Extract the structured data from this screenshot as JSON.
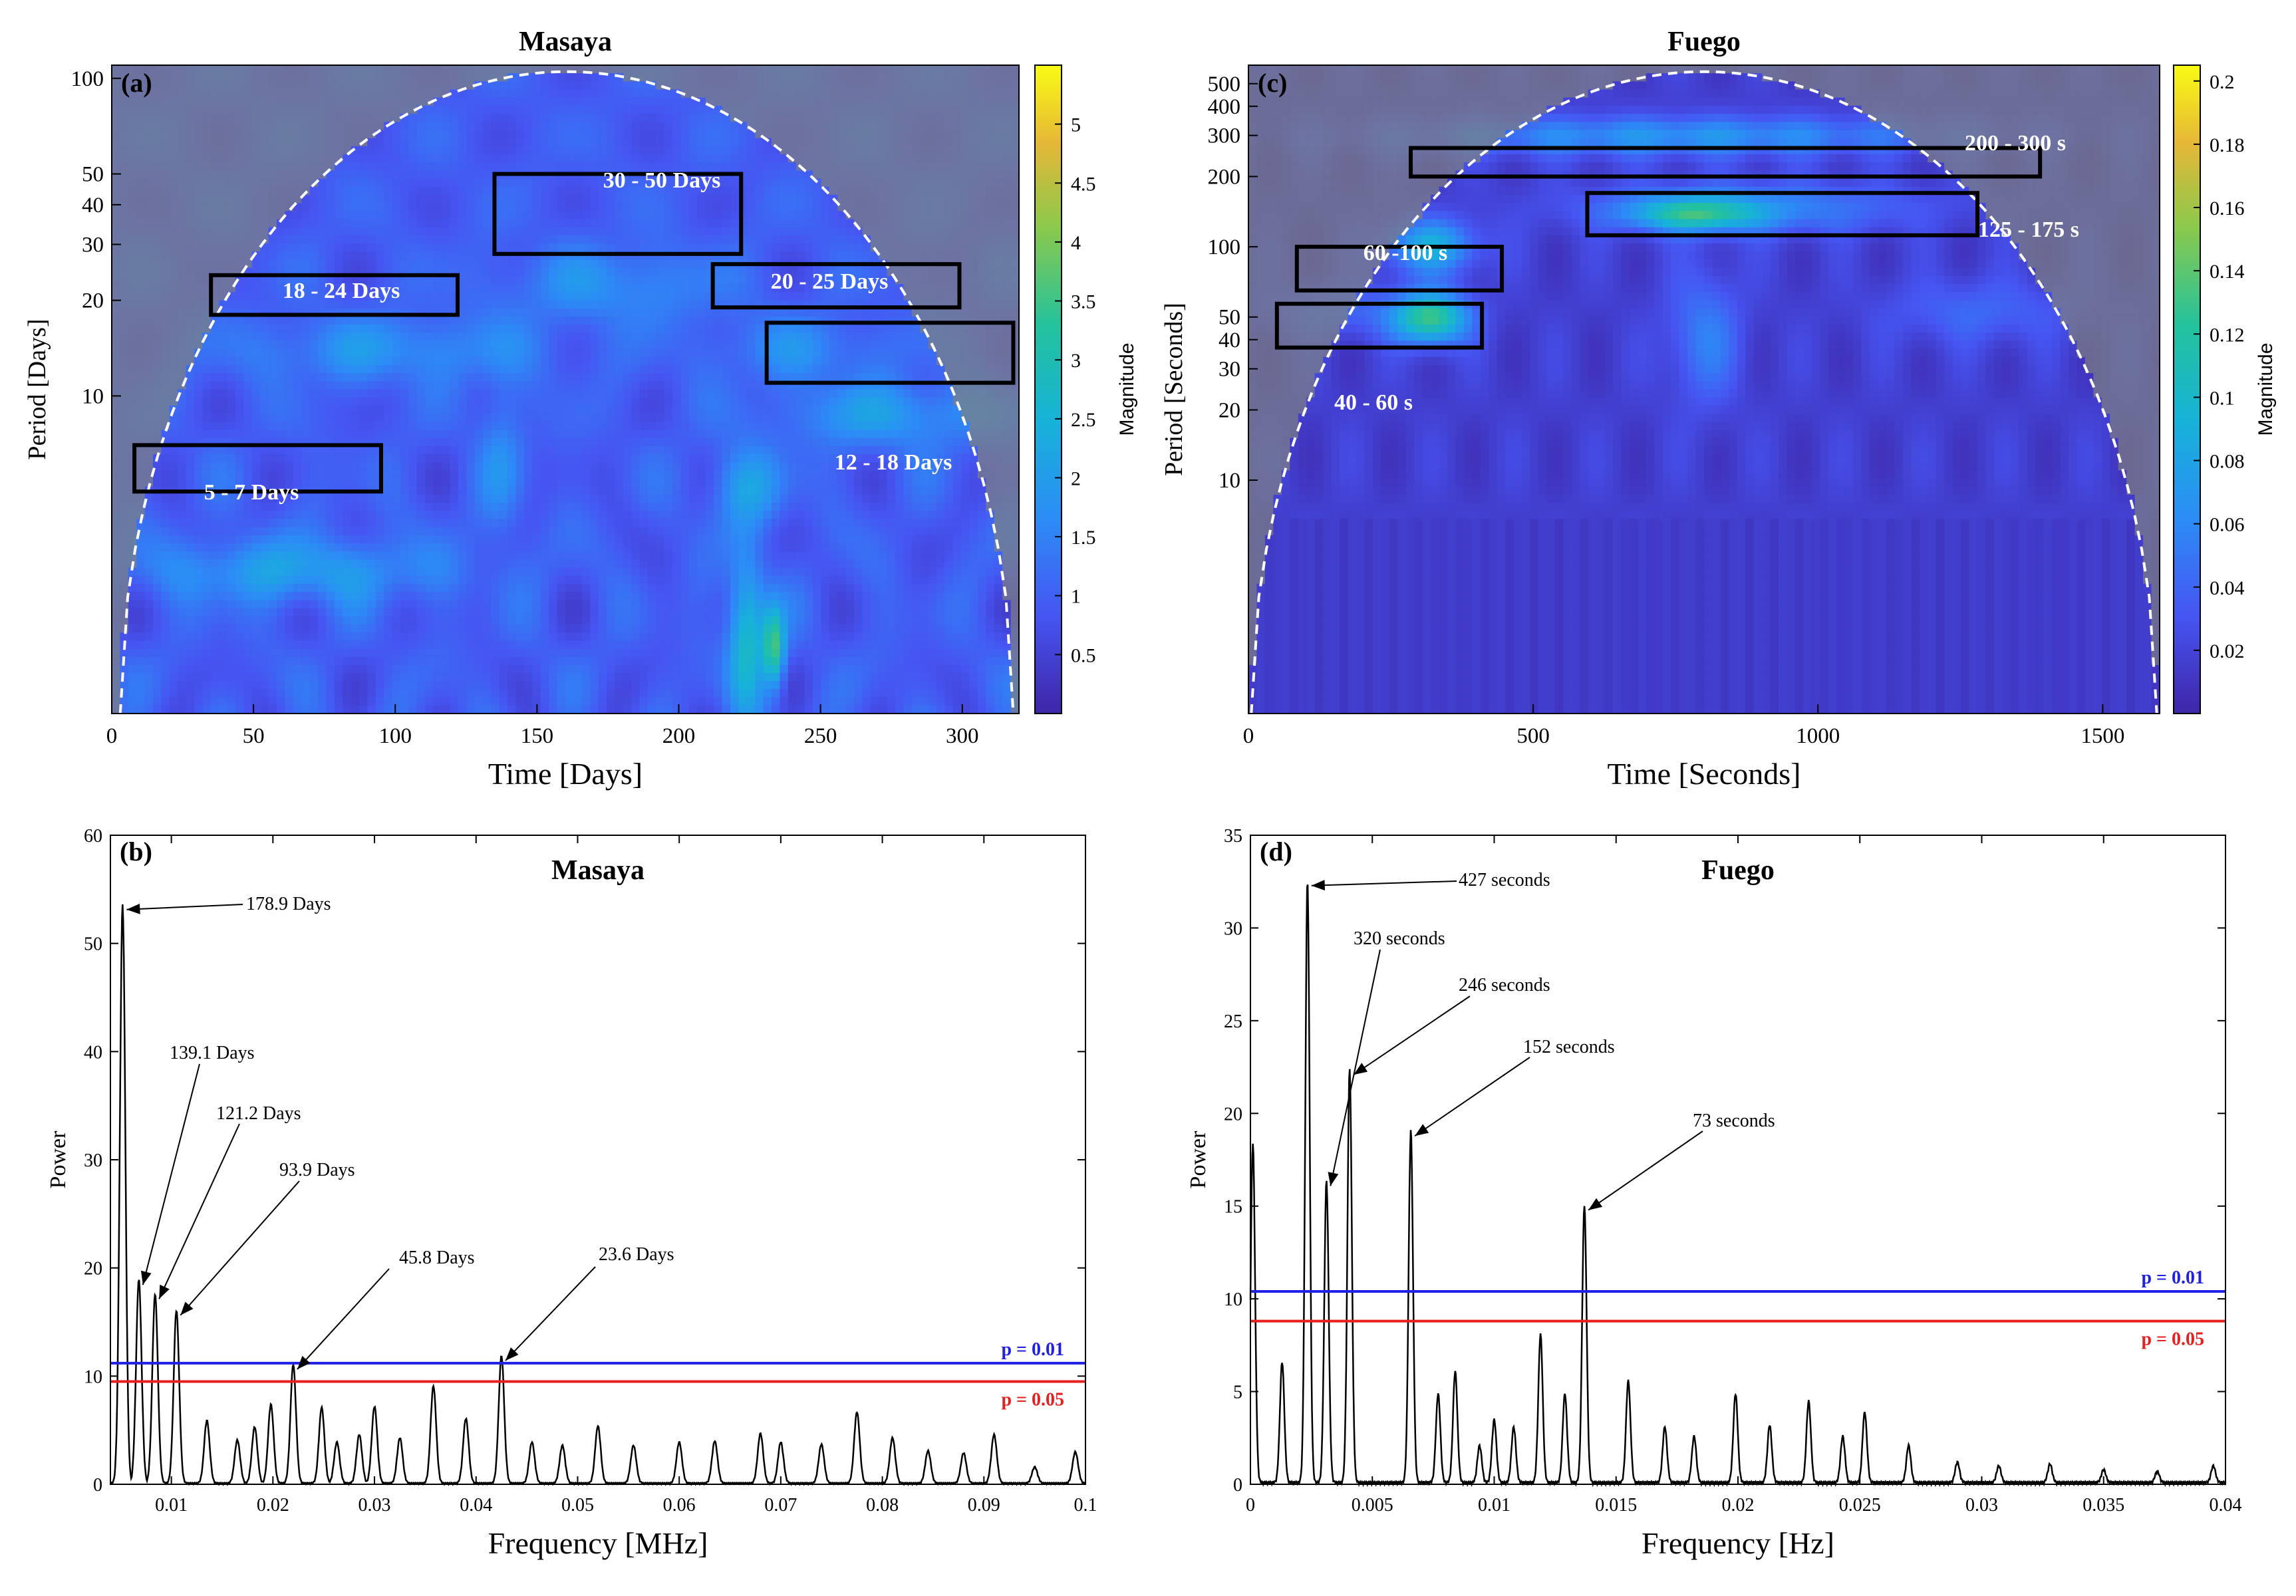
{
  "chart_data": [
    {
      "id": "a",
      "type": "heatmap",
      "panel_label": "(a)",
      "title": "Masaya",
      "xlabel": "Time [Days]",
      "ylabel": "Period [Days]",
      "xlim": [
        0,
        320
      ],
      "ylim_log": [
        1,
        110
      ],
      "xticks": [
        0,
        50,
        100,
        150,
        200,
        250,
        300
      ],
      "yticks": [
        10,
        20,
        30,
        40,
        50,
        100
      ],
      "colorbar": {
        "label": "Magnitude",
        "min": 0,
        "max": 5.5,
        "ticks": [
          0.5,
          1,
          1.5,
          2,
          2.5,
          3,
          3.5,
          4,
          4.5,
          5
        ]
      },
      "cone": {
        "apex_x": 155,
        "apex_period": 110,
        "edge_start_x": 3,
        "edge_end_x": 318
      },
      "boxes": [
        {
          "label": "5 - 7 Days",
          "x0": 8,
          "x1": 95,
          "p0": 5,
          "p1": 7
        },
        {
          "label": "18 - 24 Days",
          "x0": 35,
          "x1": 122,
          "p0": 18,
          "p1": 24
        },
        {
          "label": "30 - 50 Days",
          "x0": 135,
          "x1": 222,
          "p0": 28,
          "p1": 50
        },
        {
          "label": "20 - 25 Days",
          "x0": 212,
          "x1": 299,
          "p0": 19,
          "p1": 26
        },
        {
          "label": "12 - 18 Days",
          "x0": 231,
          "x1": 318,
          "p0": 11,
          "p1": 17
        }
      ]
    },
    {
      "id": "c",
      "type": "heatmap",
      "panel_label": "(c)",
      "title": "Fuego",
      "xlabel": "Time [Seconds]",
      "ylabel": "Period [Seconds]",
      "xlim": [
        0,
        1600
      ],
      "ylim_log": [
        1,
        600
      ],
      "xticks": [
        0,
        500,
        1000,
        1500
      ],
      "yticks": [
        10,
        20,
        30,
        40,
        50,
        100,
        200,
        300,
        400,
        500
      ],
      "colorbar": {
        "label": "Magnitude",
        "min": 0,
        "max": 0.205,
        "ticks": [
          0.02,
          0.04,
          0.06,
          0.08,
          0.1,
          0.12,
          0.14,
          0.16,
          0.18,
          0.2
        ]
      },
      "cone": {
        "apex_x": 790,
        "apex_period": 600,
        "edge_start_x": 5,
        "edge_end_x": 1595
      },
      "boxes": [
        {
          "label": "200 - 300 s",
          "x0": 285,
          "x1": 1390,
          "p0": 200,
          "p1": 265
        },
        {
          "label": "125 - 175 s",
          "x0": 595,
          "x1": 1280,
          "p0": 112,
          "p1": 170
        },
        {
          "label": "60 -100 s",
          "x0": 85,
          "x1": 445,
          "p0": 65,
          "p1": 100
        },
        {
          "label": "40 - 60 s",
          "x0": 50,
          "x1": 410,
          "p0": 37,
          "p1": 57
        }
      ]
    },
    {
      "id": "b",
      "type": "line",
      "panel_label": "(b)",
      "title": "Masaya",
      "xlabel": "Frequency [MHz]",
      "ylabel": "Power",
      "xlim": [
        0.004,
        0.1
      ],
      "ylim": [
        0,
        60
      ],
      "xticks": [
        0.01,
        0.02,
        0.03,
        0.04,
        0.05,
        0.06,
        0.07,
        0.08,
        0.09,
        0.1
      ],
      "xtick_labels": [
        "0.01",
        "0.02",
        "0.03",
        "0.04",
        "0.05",
        "0.06",
        "0.07",
        "0.08",
        "0.09",
        "0.1"
      ],
      "yticks": [
        0,
        10,
        20,
        30,
        40,
        50,
        60
      ],
      "threshold_lines": [
        {
          "label": "p = 0.01",
          "value": 11.2,
          "color": "#1f1fe6"
        },
        {
          "label": "p = 0.05",
          "value": 9.5,
          "color": "#e61f1f"
        }
      ],
      "peaks": [
        {
          "label": "178.9 Days",
          "x": 0.0052,
          "y": 53.5
        },
        {
          "label": "139.1 Days",
          "x": 0.0068,
          "y": 18.8
        },
        {
          "label": "121.2 Days",
          "x": 0.0084,
          "y": 17.5
        },
        {
          "label": "93.9 Days",
          "x": 0.0105,
          "y": 16.0
        },
        {
          "label": "45.8 Days",
          "x": 0.022,
          "y": 11.0
        },
        {
          "label": "23.6 Days",
          "x": 0.0425,
          "y": 11.8
        }
      ],
      "minor_peaks": [
        [
          0.0135,
          5.8
        ],
        [
          0.0165,
          4.0
        ],
        [
          0.0182,
          5.2
        ],
        [
          0.0198,
          7.3
        ],
        [
          0.0248,
          7.0
        ],
        [
          0.0263,
          3.8
        ],
        [
          0.0285,
          4.5
        ],
        [
          0.03,
          7.1
        ],
        [
          0.0325,
          4.2
        ],
        [
          0.0358,
          9.0
        ],
        [
          0.039,
          6.0
        ],
        [
          0.0455,
          3.8
        ],
        [
          0.0485,
          3.5
        ],
        [
          0.052,
          5.3
        ],
        [
          0.0555,
          3.5
        ],
        [
          0.06,
          3.8
        ],
        [
          0.0635,
          3.9
        ],
        [
          0.068,
          4.6
        ],
        [
          0.07,
          3.8
        ],
        [
          0.074,
          3.6
        ],
        [
          0.0775,
          6.6
        ],
        [
          0.081,
          4.2
        ],
        [
          0.0845,
          3.0
        ],
        [
          0.088,
          2.8
        ],
        [
          0.091,
          4.5
        ],
        [
          0.095,
          1.5
        ],
        [
          0.099,
          2.9
        ]
      ]
    },
    {
      "id": "d",
      "type": "line",
      "panel_label": "(d)",
      "title": "Fuego",
      "xlabel": "Frequency [Hz]",
      "ylabel": "Power",
      "xlim": [
        0,
        0.04
      ],
      "ylim": [
        0,
        35
      ],
      "xticks": [
        0,
        0.005,
        0.01,
        0.015,
        0.02,
        0.025,
        0.03,
        0.035,
        0.04
      ],
      "xtick_labels": [
        "0",
        "0.005",
        "0.01",
        "0.015",
        "0.02",
        "0.025",
        "0.03",
        "0.035",
        "0.04"
      ],
      "yticks": [
        0,
        5,
        10,
        15,
        20,
        25,
        30,
        35
      ],
      "threshold_lines": [
        {
          "label": "p = 0.01",
          "value": 10.4,
          "color": "#1f1fe6"
        },
        {
          "label": "p = 0.05",
          "value": 8.8,
          "color": "#e61f1f"
        }
      ],
      "peaks": [
        {
          "label": "427 seconds",
          "x": 0.00234,
          "y": 32.5
        },
        {
          "label": "320 seconds",
          "x": 0.00312,
          "y": 16.3
        },
        {
          "label": "246 seconds",
          "x": 0.00407,
          "y": 22.3
        },
        {
          "label": "152 seconds",
          "x": 0.00658,
          "y": 19.0
        },
        {
          "label": "73 seconds",
          "x": 0.0137,
          "y": 15.0
        }
      ],
      "minor_peaks": [
        [
          0.0001,
          18.3
        ],
        [
          0.0013,
          6.5
        ],
        [
          0.0077,
          4.8
        ],
        [
          0.0084,
          6.0
        ],
        [
          0.0094,
          2.0
        ],
        [
          0.01,
          3.4
        ],
        [
          0.0108,
          3.0
        ],
        [
          0.0119,
          8.0
        ],
        [
          0.0129,
          4.8
        ],
        [
          0.0155,
          5.5
        ],
        [
          0.017,
          3.0
        ],
        [
          0.0182,
          2.5
        ],
        [
          0.0199,
          4.8
        ],
        [
          0.0213,
          3.1
        ],
        [
          0.0229,
          4.4
        ],
        [
          0.0243,
          2.5
        ],
        [
          0.0252,
          3.8
        ],
        [
          0.027,
          2.0
        ],
        [
          0.029,
          1.1
        ],
        [
          0.0307,
          0.9
        ],
        [
          0.0328,
          1.0
        ],
        [
          0.035,
          0.7
        ],
        [
          0.0372,
          0.6
        ],
        [
          0.0395,
          0.9
        ]
      ]
    }
  ]
}
